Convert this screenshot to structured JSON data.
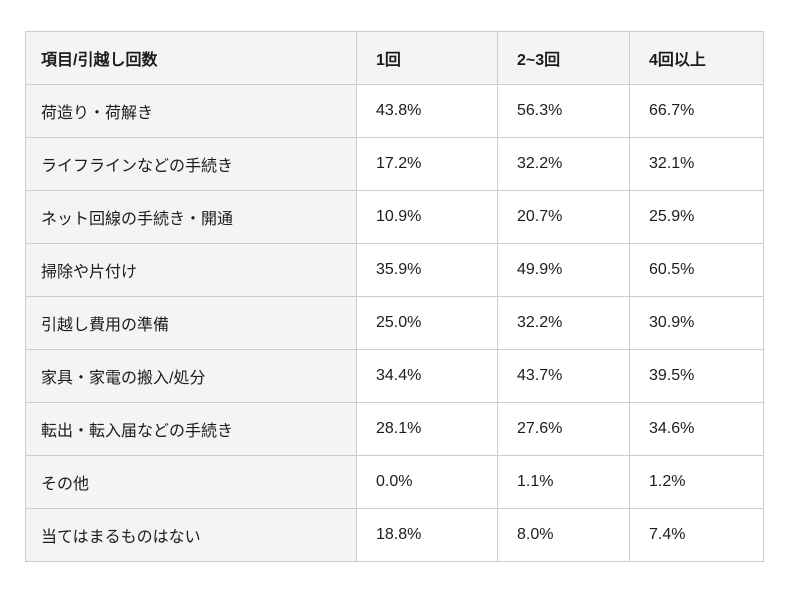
{
  "chart_data": {
    "type": "table",
    "title": "",
    "columns": [
      "項目/引越し回数",
      "1回",
      "2~3回",
      "4回以上"
    ],
    "rows": [
      {
        "label": "荷造り・荷解き",
        "values": [
          "43.8%",
          "56.3%",
          "66.7%"
        ]
      },
      {
        "label": "ライフラインなどの手続き",
        "values": [
          "17.2%",
          "32.2%",
          "32.1%"
        ]
      },
      {
        "label": "ネット回線の手続き・開通",
        "values": [
          "10.9%",
          "20.7%",
          "25.9%"
        ]
      },
      {
        "label": "掃除や片付け",
        "values": [
          "35.9%",
          "49.9%",
          "60.5%"
        ]
      },
      {
        "label": "引越し費用の準備",
        "values": [
          "25.0%",
          "32.2%",
          "30.9%"
        ]
      },
      {
        "label": "家具・家電の搬入/処分",
        "values": [
          "34.4%",
          "43.7%",
          "39.5%"
        ]
      },
      {
        "label": "転出・転入届などの手続き",
        "values": [
          "28.1%",
          "27.6%",
          "34.6%"
        ]
      },
      {
        "label": "その他",
        "values": [
          "0.0%",
          "1.1%",
          "1.2%"
        ]
      },
      {
        "label": "当てはまるものはない",
        "values": [
          "18.8%",
          "8.0%",
          "7.4%"
        ]
      }
    ],
    "numeric_rows": [
      {
        "label": "荷造り・荷解き",
        "values": [
          43.8,
          56.3,
          66.7
        ]
      },
      {
        "label": "ライフラインなどの手続き",
        "values": [
          17.2,
          32.2,
          32.1
        ]
      },
      {
        "label": "ネット回線の手続き・開通",
        "values": [
          10.9,
          20.7,
          25.9
        ]
      },
      {
        "label": "掃除や片付け",
        "values": [
          35.9,
          49.9,
          60.5
        ]
      },
      {
        "label": "引越し費用の準備",
        "values": [
          25.0,
          32.2,
          30.9
        ]
      },
      {
        "label": "家具・家電の搬入/処分",
        "values": [
          34.4,
          43.7,
          39.5
        ]
      },
      {
        "label": "転出・転入届などの手続き",
        "values": [
          28.1,
          27.6,
          34.6
        ]
      },
      {
        "label": "その他",
        "values": [
          0.0,
          1.1,
          1.2
        ]
      },
      {
        "label": "当てはまるものはない",
        "values": [
          18.8,
          8.0,
          7.4
        ]
      }
    ],
    "unit": "%"
  },
  "colors": {
    "header_bg": "#f4f4f4",
    "label_column_bg": "#f4f4f4",
    "cell_bg": "#ffffff",
    "border": "#cccccc",
    "text": "#1c1c1c",
    "page_bg": "#ffffff"
  }
}
